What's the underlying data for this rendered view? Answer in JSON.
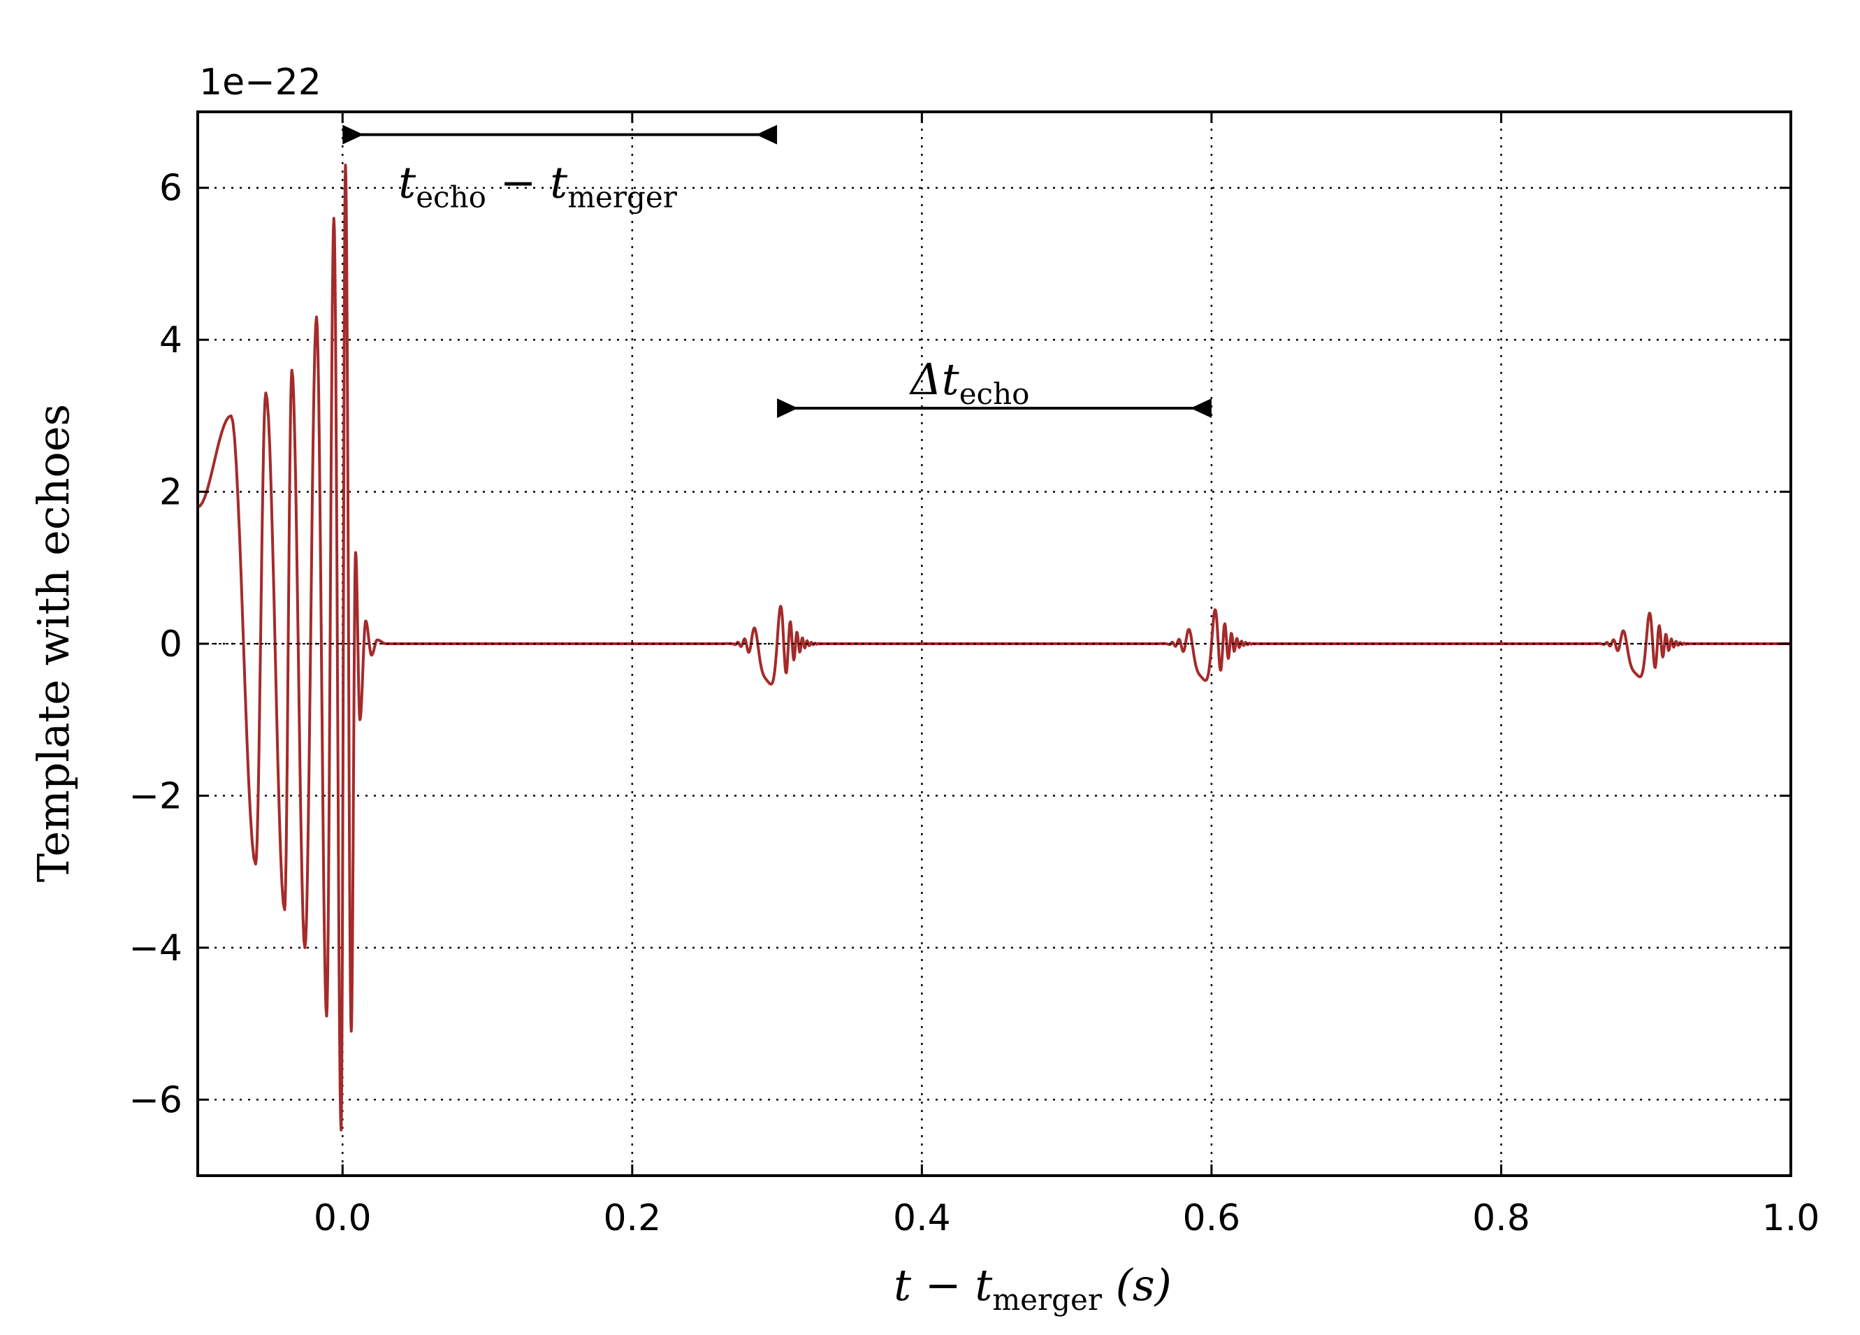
{
  "chart_data": {
    "type": "line",
    "title": "",
    "xlabel": {
      "main": "t − t",
      "sub": "merger",
      "suffix": " (s)"
    },
    "ylabel": "Template with echoes",
    "y_offset_label": "1e−22",
    "xlim": [
      -0.1,
      1.0
    ],
    "ylim": [
      -7,
      7
    ],
    "y_scale": "1e-22",
    "grid": true,
    "grid_style": "dotted",
    "line_color": "#a52a2a",
    "x_ticks": [
      0.0,
      0.2,
      0.4,
      0.6,
      0.8,
      1.0
    ],
    "x_tick_labels": [
      "0.0",
      "0.2",
      "0.4",
      "0.6",
      "0.8",
      "1.0"
    ],
    "y_ticks": [
      -6,
      -4,
      -2,
      0,
      2,
      4,
      6
    ],
    "y_tick_labels": [
      "−6",
      "−4",
      "−2",
      "0",
      "2",
      "4",
      "6"
    ],
    "series": [
      {
        "signal": "inspiral-merger-ringdown",
        "inspiral_peaks": [
          {
            "x": -0.077,
            "y": 3.0
          },
          {
            "x": -0.06,
            "y": -2.9
          },
          {
            "x": -0.053,
            "y": 3.3
          },
          {
            "x": -0.04,
            "y": -3.5
          },
          {
            "x": -0.035,
            "y": 3.6
          },
          {
            "x": -0.026,
            "y": -4.0
          },
          {
            "x": -0.018,
            "y": 4.3
          },
          {
            "x": -0.011,
            "y": -4.9
          },
          {
            "x": -0.006,
            "y": 5.6
          },
          {
            "x": -0.001,
            "y": -6.4
          },
          {
            "x": 0.002,
            "y": 6.3
          },
          {
            "x": 0.006,
            "y": -5.1
          },
          {
            "x": 0.009,
            "y": 1.2
          },
          {
            "x": 0.012,
            "y": -1.0
          }
        ],
        "echoes": [
          {
            "center": 0.3,
            "amplitude": 0.55
          },
          {
            "center": 0.6,
            "amplitude": 0.5
          },
          {
            "center": 0.9,
            "amplitude": 0.45
          }
        ]
      }
    ],
    "annotations": [
      {
        "label_main": "t",
        "label_sub": "echo",
        "label_mid": " − t",
        "label_sub2": "merger",
        "x_start": 0.0,
        "x_end": 0.3,
        "y": 6.7
      },
      {
        "label_main": "Δt",
        "label_sub": "echo",
        "x_start": 0.3,
        "x_end": 0.6,
        "y": 3.1
      }
    ]
  }
}
